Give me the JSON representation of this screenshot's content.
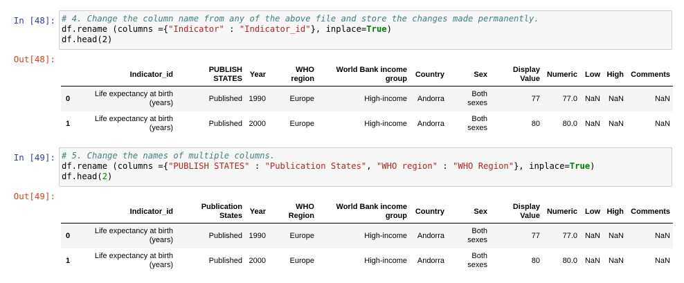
{
  "cells": [
    {
      "in_prompt": "In [48]:",
      "out_prompt": "Out[48]:",
      "code": [
        [
          "# 4. Change the column name from any of the above file and store the changes made permanently."
        ],
        [
          "df.rename (columns ={",
          "\"Indicator\"",
          " : ",
          "\"Indicator_id\"",
          "}, inplace=",
          "True",
          ")"
        ],
        [
          "df.head(2)"
        ]
      ],
      "table": {
        "headers": [
          "Indicator_id",
          "PUBLISH STATES",
          "Year",
          "WHO region",
          "World Bank income group",
          "Country",
          "Sex",
          "Display Value",
          "Numeric",
          "Low",
          "High",
          "Comments"
        ],
        "rows": [
          [
            "0",
            "Life expectancy at birth (years)",
            "Published",
            "1990",
            "Europe",
            "High-income",
            "Andorra",
            "Both sexes",
            "77",
            "77.0",
            "NaN",
            "NaN",
            "NaN"
          ],
          [
            "1",
            "Life expectancy at birth (years)",
            "Published",
            "2000",
            "Europe",
            "High-income",
            "Andorra",
            "Both sexes",
            "80",
            "80.0",
            "NaN",
            "NaN",
            "NaN"
          ]
        ]
      }
    },
    {
      "in_prompt": "In [49]:",
      "out_prompt": "Out[49]:",
      "code": [
        [
          "# 5. Change the names of multiple columns."
        ],
        [
          "df.rename (columns ={",
          "\"PUBLISH STATES\"",
          " : ",
          "\"Publication States\"",
          ", ",
          "\"WHO region\"",
          " : ",
          "\"WHO Region\"",
          "}, inplace=",
          "True",
          ")"
        ],
        [
          "df.head(",
          "2",
          ")"
        ]
      ],
      "table": {
        "headers": [
          "Indicator_id",
          "Publication States",
          "Year",
          "WHO Region",
          "World Bank income group",
          "Country",
          "Sex",
          "Display Value",
          "Numeric",
          "Low",
          "High",
          "Comments"
        ],
        "rows": [
          [
            "0",
            "Life expectancy at birth (years)",
            "Published",
            "1990",
            "Europe",
            "High-income",
            "Andorra",
            "Both sexes",
            "77",
            "77.0",
            "NaN",
            "NaN",
            "NaN"
          ],
          [
            "1",
            "Life expectancy at birth (years)",
            "Published",
            "2000",
            "Europe",
            "High-income",
            "Andorra",
            "Both sexes",
            "80",
            "80.0",
            "NaN",
            "NaN",
            "NaN"
          ]
        ]
      }
    }
  ]
}
